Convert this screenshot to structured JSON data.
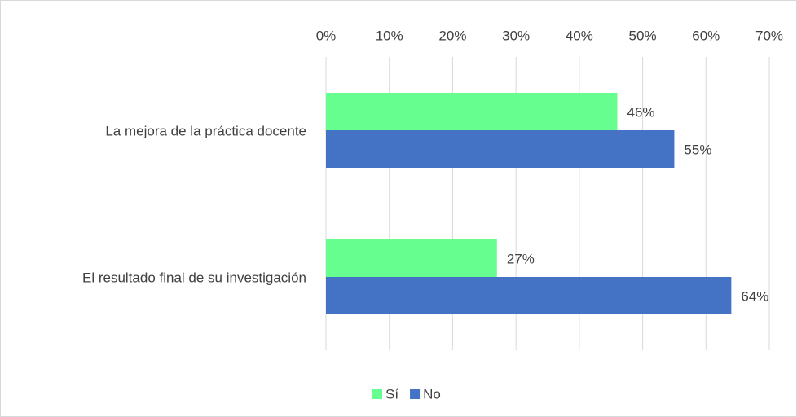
{
  "chart_data": {
    "type": "hbar",
    "categories": [
      "La mejora de la práctica docente",
      "El resultado final de su investigación"
    ],
    "series": [
      {
        "name": "Sí",
        "color": "#66ff8f",
        "values": [
          46,
          27
        ],
        "value_labels": [
          "46%",
          "27%"
        ]
      },
      {
        "name": "No",
        "color": "#4472c4",
        "values": [
          55,
          64
        ],
        "value_labels": [
          "55%",
          "64%"
        ]
      }
    ],
    "xlim": [
      0,
      70
    ],
    "xticks": [
      {
        "value": 0,
        "label": "0%"
      },
      {
        "value": 10,
        "label": "10%"
      },
      {
        "value": 20,
        "label": "20%"
      },
      {
        "value": 30,
        "label": "30%"
      },
      {
        "value": 40,
        "label": "40%"
      },
      {
        "value": 50,
        "label": "50%"
      },
      {
        "value": 60,
        "label": "60%"
      },
      {
        "value": 70,
        "label": "70%"
      }
    ],
    "grid": true,
    "legend": "bottom"
  }
}
